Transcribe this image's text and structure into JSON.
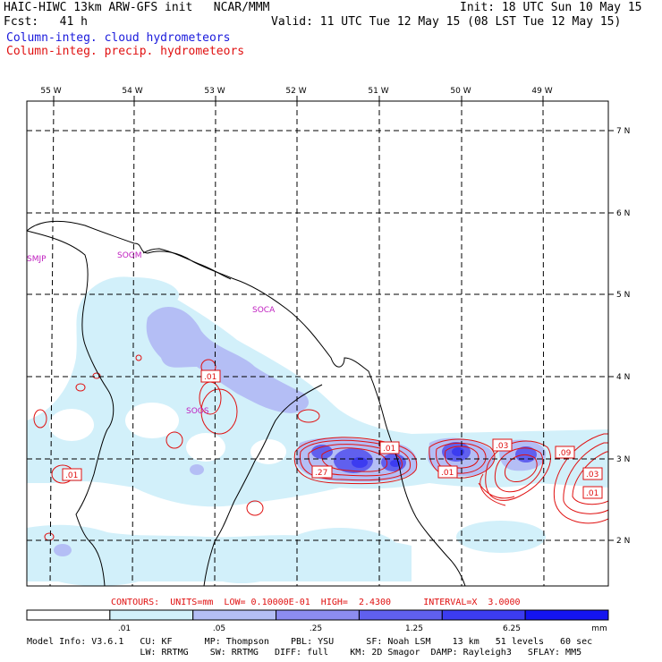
{
  "header": {
    "title_left": "HAIC-HIWC 13km ARW-GFS init   NCAR/MMM",
    "init": "Init: 18 UTC Sun 10 May 15",
    "fcst_label": "Fcst:   41 h",
    "valid": "Valid: 11 UTC Tue 12 May 15 (08 LST Tue 12 May 15)",
    "field_cloud": "Column-integ. cloud hydrometeors",
    "field_precip": "Column-integ. precip. hydrometeors"
  },
  "map": {
    "lon_labels": [
      "55 W",
      "54 W",
      "53 W",
      "52 W",
      "51 W",
      "50 W",
      "49 W"
    ],
    "lat_labels": [
      "7 N",
      "6 N",
      "5 N",
      "4 N",
      "3 N",
      "2 N"
    ],
    "stations": [
      "SMJP",
      "SOGM",
      "SOCA",
      "SOOS"
    ],
    "contour_labels": [
      ".01",
      ".01",
      ".27",
      ".01",
      ".01",
      ".03",
      ".09",
      ".03",
      ".01"
    ]
  },
  "contour_info": "CONTOURS:  UNITS=mm  LOW= 0.10000E-01  HIGH=  2.4300      INTERVAL=X  3.0000",
  "colorbar": {
    "ticks": [
      ".01",
      ".05",
      ".25",
      "1.25",
      "6.25",
      "mm"
    ],
    "colors": [
      "#ffffff",
      "#d2f0fa",
      "#b4bef5",
      "#8c8cf0",
      "#6060ee",
      "#3c3cf0",
      "#1414f0"
    ]
  },
  "model_info": {
    "line1": "Model Info: V3.6.1   CU: KF      MP: Thompson    PBL: YSU      SF: Noah LSM    13 km   51 levels   60 sec",
    "line2": "                     LW: RRTMG    SW: RRTMG   DIFF: full    KM: 2D Smagor  DAMP: Rayleigh3   SFLAY: MM5"
  }
}
